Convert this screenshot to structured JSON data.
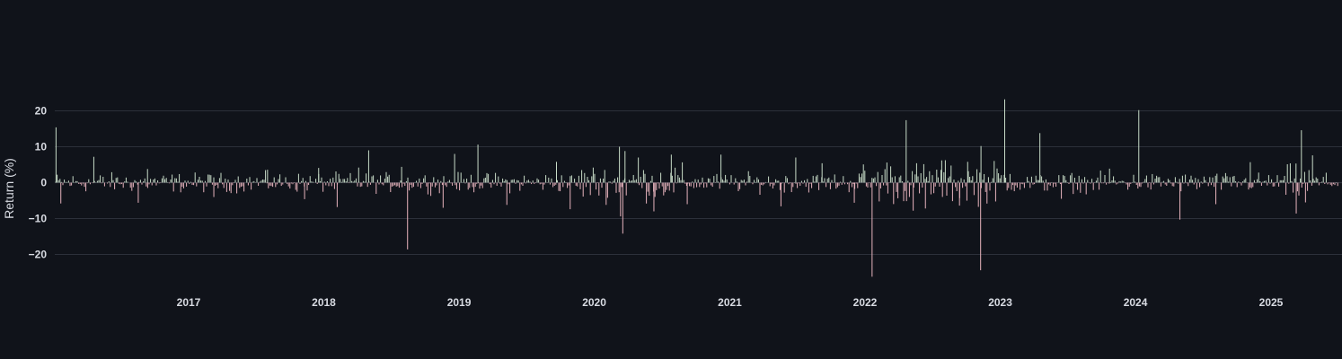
{
  "chart_data": {
    "type": "bar",
    "ylabel": "Return (%)",
    "xlabel": "",
    "ylim": [
      -27,
      28
    ],
    "xlim": [
      "2016-01-03",
      "2025-06-20"
    ],
    "grid": true,
    "legend": "none",
    "yticks": [
      20,
      10,
      0,
      -10,
      -20
    ],
    "ytick_labels": [
      "20",
      "10",
      "0",
      "−10",
      "−20"
    ],
    "xtick_labels": [
      "2017",
      "2018",
      "2019",
      "2020",
      "2021",
      "2022",
      "2023",
      "2024",
      "2025"
    ],
    "xtick_dates": [
      "2017-01-01",
      "2018-01-01",
      "2019-01-01",
      "2020-01-01",
      "2021-01-01",
      "2022-01-01",
      "2023-01-01",
      "2024-01-01",
      "2025-01-01"
    ],
    "colors": {
      "positive": "#c8dcc8",
      "negative": "#e8b4be",
      "grid": "#2c303a",
      "background": "#10131a",
      "text": "#d8dbe2"
    },
    "series": [
      {
        "values": [
          [
            "2016-01-09",
            15.4
          ],
          [
            "2016-01-22",
            -5.8
          ],
          [
            "2016-04-20",
            7.2
          ],
          [
            "2016-08-18",
            -5.6
          ],
          [
            "2016-09-12",
            3.8
          ],
          [
            "2017-03-10",
            -4.0
          ],
          [
            "2017-08-02",
            3.6
          ],
          [
            "2017-11-10",
            -4.6
          ],
          [
            "2017-12-18",
            4.1
          ],
          [
            "2018-02-06",
            -6.8
          ],
          [
            "2018-04-05",
            4.2
          ],
          [
            "2018-05-02",
            9.0
          ],
          [
            "2018-07-30",
            4.4
          ],
          [
            "2018-08-15",
            -18.6
          ],
          [
            "2018-11-19",
            -7.0
          ],
          [
            "2018-12-20",
            8.0
          ],
          [
            "2019-02-21",
            10.6
          ],
          [
            "2019-05-10",
            -6.2
          ],
          [
            "2019-09-21",
            5.8
          ],
          [
            "2019-10-28",
            -7.4
          ],
          [
            "2020-03-09",
            10.0
          ],
          [
            "2020-03-12",
            -9.4
          ],
          [
            "2020-03-18",
            -14.2
          ],
          [
            "2020-03-24",
            8.8
          ],
          [
            "2020-04-29",
            7.0
          ],
          [
            "2020-06-10",
            -8.0
          ],
          [
            "2020-07-27",
            7.8
          ],
          [
            "2020-09-08",
            -6.0
          ],
          [
            "2020-12-08",
            7.8
          ],
          [
            "2021-05-19",
            -6.6
          ],
          [
            "2021-06-28",
            7.0
          ],
          [
            "2021-09-07",
            5.4
          ],
          [
            "2021-12-03",
            -5.6
          ],
          [
            "2022-01-20",
            -26.2
          ],
          [
            "2022-03-01",
            5.6
          ],
          [
            "2022-04-22",
            17.4
          ],
          [
            "2022-05-11",
            -7.8
          ],
          [
            "2022-06-13",
            -7.2
          ],
          [
            "2022-07-27",
            6.2
          ],
          [
            "2022-09-13",
            -6.4
          ],
          [
            "2022-10-05",
            5.8
          ],
          [
            "2022-11-09",
            -24.4
          ],
          [
            "2022-11-10",
            10.2
          ],
          [
            "2023-01-13",
            23.2
          ],
          [
            "2023-04-18",
            13.8
          ],
          [
            "2023-06-15",
            -4.5
          ],
          [
            "2023-10-23",
            3.9
          ],
          [
            "2024-01-10",
            20.2
          ],
          [
            "2024-04-30",
            -10.3
          ],
          [
            "2024-08-05",
            -6.0
          ],
          [
            "2024-11-06",
            5.7
          ],
          [
            "2025-03-10",
            -8.6
          ],
          [
            "2025-03-24",
            14.6
          ],
          [
            "2025-04-04",
            -5.5
          ],
          [
            "2025-04-23",
            7.6
          ]
        ]
      }
    ]
  }
}
